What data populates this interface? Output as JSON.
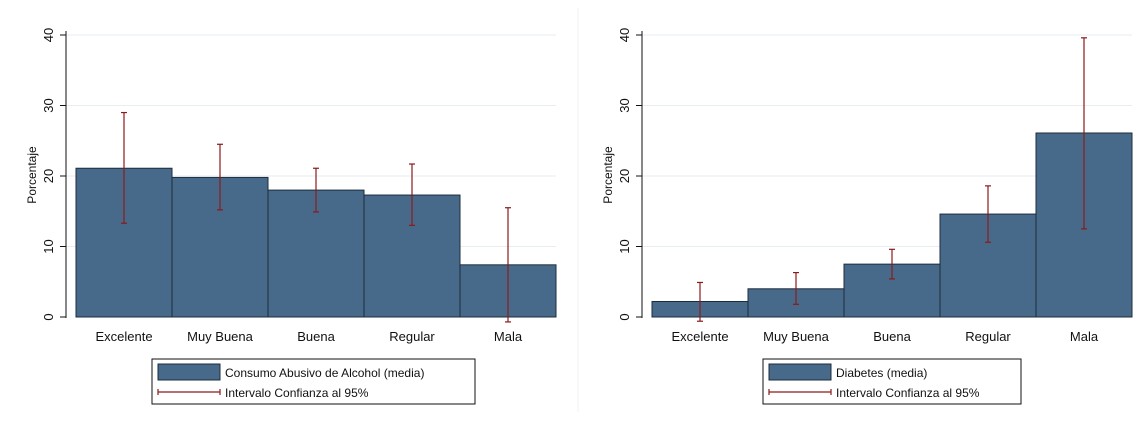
{
  "chart_data": [
    {
      "type": "bar",
      "categories": [
        "Excelente",
        "Muy Buena",
        "Buena",
        "Regular",
        "Mala"
      ],
      "ylabel": "Porcentaje",
      "ylim": [
        0,
        40
      ],
      "yticks": [
        "0",
        "10",
        "20",
        "30",
        "40"
      ],
      "grid": true,
      "legend_position": "bottom",
      "series": [
        {
          "name": "Consumo Abusivo de Alcohol (media)",
          "values": [
            21.1,
            19.8,
            18.0,
            17.3,
            7.4
          ]
        }
      ],
      "error_bars": {
        "name": "Intervalo Confianza al 95%",
        "lower": [
          13.3,
          15.2,
          14.9,
          13.0,
          -0.7
        ],
        "upper": [
          29.0,
          24.5,
          21.1,
          21.7,
          15.5
        ]
      },
      "colors": {
        "bar": "#476a8a",
        "bar_edge": "#1c2c3c",
        "error": "#8b1a1a",
        "grid": "#e6eef2"
      }
    },
    {
      "type": "bar",
      "categories": [
        "Excelente",
        "Muy Buena",
        "Buena",
        "Regular",
        "Mala"
      ],
      "ylabel": "Porcentaje",
      "ylim": [
        0,
        40
      ],
      "yticks": [
        "0",
        "10",
        "20",
        "30",
        "40"
      ],
      "grid": true,
      "legend_position": "bottom",
      "series": [
        {
          "name": "Diabetes (media)",
          "values": [
            2.2,
            4.0,
            7.5,
            14.6,
            26.1
          ]
        }
      ],
      "error_bars": {
        "name": "Intervalo Confianza al 95%",
        "lower": [
          -0.6,
          1.8,
          5.4,
          10.6,
          12.5
        ],
        "upper": [
          4.9,
          6.3,
          9.6,
          18.6,
          39.6
        ]
      },
      "colors": {
        "bar": "#476a8a",
        "bar_edge": "#1c2c3c",
        "error": "#8b1a1a",
        "grid": "#e6eef2"
      }
    }
  ]
}
